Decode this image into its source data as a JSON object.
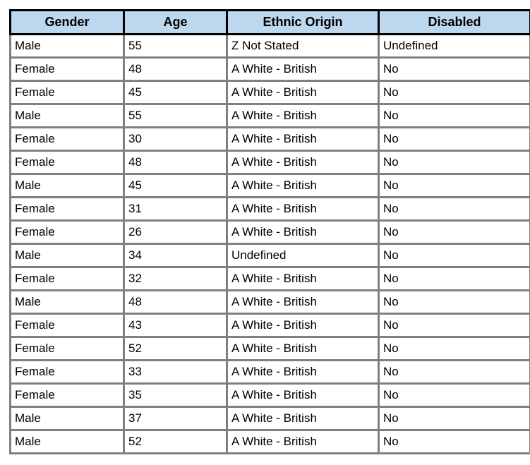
{
  "colors": {
    "header_background": "#BDD7EE",
    "header_border": "#000000",
    "grid_border": "#808080",
    "text": "#000000",
    "page_background": "#FFFFFF"
  },
  "table": {
    "columns": [
      {
        "key": "gender",
        "label": "Gender"
      },
      {
        "key": "age",
        "label": "Age"
      },
      {
        "key": "ethnic-origin",
        "label": "Ethnic Origin"
      },
      {
        "key": "disabled",
        "label": "Disabled"
      }
    ],
    "rows": [
      [
        "Male",
        "55",
        "Z Not Stated",
        "Undefined"
      ],
      [
        "Female",
        "48",
        "A White - British",
        "No"
      ],
      [
        "Female",
        "45",
        "A White - British",
        "No"
      ],
      [
        "Male",
        "55",
        "A White - British",
        "No"
      ],
      [
        "Female",
        "30",
        "A White - British",
        "No"
      ],
      [
        "Female",
        "48",
        "A White - British",
        "No"
      ],
      [
        "Male",
        "45",
        "A White - British",
        "No"
      ],
      [
        "Female",
        "31",
        "A White - British",
        "No"
      ],
      [
        "Female",
        "26",
        "A White - British",
        "No"
      ],
      [
        "Male",
        "34",
        "Undefined",
        "No"
      ],
      [
        "Female",
        "32",
        "A White - British",
        "No"
      ],
      [
        "Male",
        "48",
        "A White - British",
        "No"
      ],
      [
        "Female",
        "43",
        "A White - British",
        "No"
      ],
      [
        "Female",
        "52",
        "A White - British",
        "No"
      ],
      [
        "Female",
        "33",
        "A White - British",
        "No"
      ],
      [
        "Female",
        "35",
        "A White - British",
        "No"
      ],
      [
        "Male",
        "37",
        "A White - British",
        "No"
      ],
      [
        "Male",
        "52",
        "A White - British",
        "No"
      ]
    ]
  }
}
